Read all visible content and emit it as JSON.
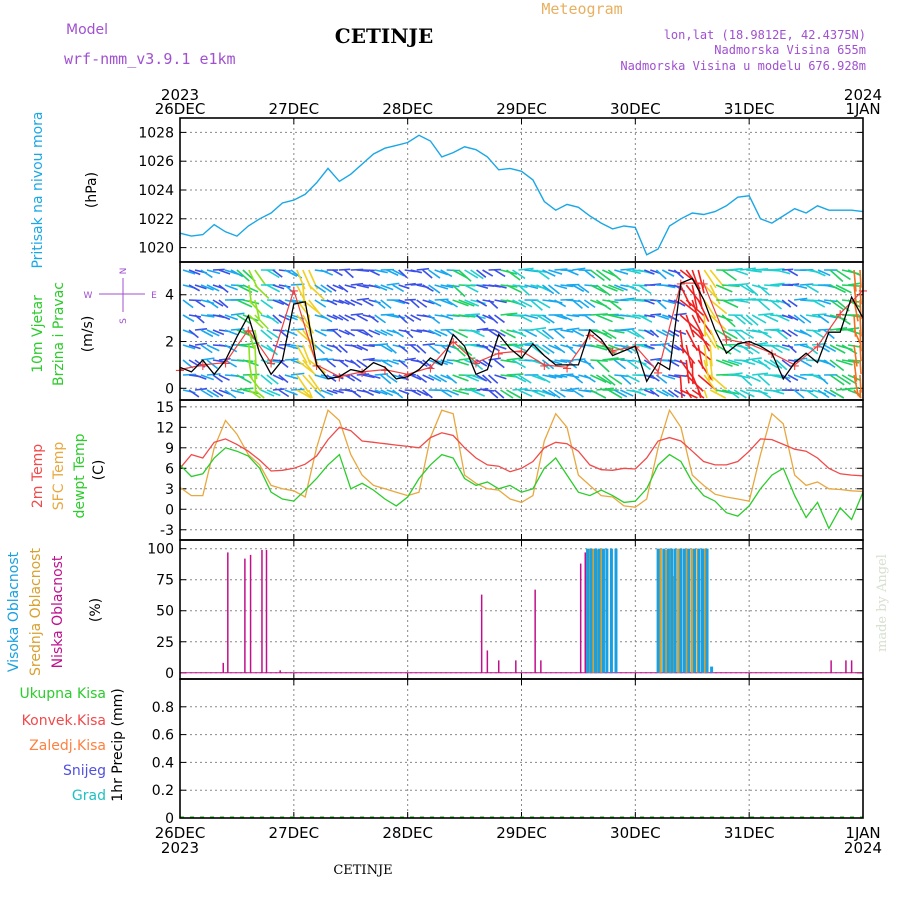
{
  "header": {
    "model_label": "Model",
    "model_name": "wrf-nmm_v3.9.1  e1km",
    "station": "CETINJE",
    "meteogram": "Meteogram",
    "lonlat": "lon,lat (18.9812E, 42.4375N)",
    "alt1": "Nadmorska Visina 655m",
    "alt2": "Nadmorska Visina u modelu 676.928m"
  },
  "footer": {
    "station": "CETINJE"
  },
  "watermark": "made by Angel",
  "time_axis": {
    "start_year": "2023",
    "end_year": "2024",
    "labels": [
      "26DEC",
      "27DEC",
      "28DEC",
      "29DEC",
      "30DEC",
      "31DEC",
      "1JAN"
    ]
  },
  "colors": {
    "pressure": "#1aa7e6",
    "wind_black": "#000000",
    "wind_red": "#f04040",
    "t2m": "#f04a4a",
    "sfc": "#e8a840",
    "dew": "#2ccc2c",
    "low_cloud": "#c0108c",
    "mid_cloud": "#d8a030",
    "high_cloud": "#1aa0e0",
    "precip_total": "#2ccc2c",
    "precip_conv": "#f04a4a",
    "precip_snow_ice": "#ff8040",
    "snow": "#5050e0",
    "grad": "#20c0c0"
  },
  "chart_data": [
    {
      "type": "line",
      "ylabel": "(hPa)",
      "side_label": "Pritisak na nivou mora",
      "yticks": [
        1020,
        1022,
        1024,
        1026,
        1028
      ],
      "ylim": [
        1019,
        1029
      ],
      "series": [
        {
          "x": [
            0,
            0.1,
            0.2,
            0.3,
            0.4,
            0.5,
            0.6,
            0.7,
            0.8,
            0.9,
            1.0,
            1.1,
            1.2,
            1.3,
            1.4,
            1.5,
            1.6,
            1.7,
            1.8,
            1.9,
            2.0,
            2.1,
            2.2,
            2.3,
            2.4,
            2.5,
            2.6,
            2.7,
            2.8,
            2.9,
            3.0,
            3.1,
            3.2,
            3.3,
            3.4,
            3.5,
            3.6,
            3.7,
            3.8,
            3.9,
            4.0,
            4.1,
            4.2,
            4.3,
            4.4,
            4.5,
            4.6,
            4.7,
            4.8,
            4.9,
            5.0,
            5.1,
            5.2,
            5.3,
            5.4,
            5.5,
            5.6,
            5.7,
            5.8,
            5.9,
            6.0
          ],
          "values": [
            1021.0,
            1020.8,
            1020.9,
            1021.6,
            1021.1,
            1020.8,
            1021.5,
            1022.0,
            1022.4,
            1023.1,
            1023.3,
            1023.7,
            1024.5,
            1025.5,
            1024.6,
            1025.1,
            1025.8,
            1026.5,
            1026.9,
            1027.1,
            1027.3,
            1027.8,
            1027.4,
            1026.3,
            1026.6,
            1027.0,
            1026.8,
            1026.3,
            1025.4,
            1025.5,
            1025.3,
            1024.7,
            1023.2,
            1022.6,
            1023.0,
            1022.8,
            1022.2,
            1021.7,
            1021.3,
            1021.5,
            1021.4,
            1019.5,
            1019.9,
            1021.5,
            1022.0,
            1022.4,
            1022.3,
            1022.5,
            1022.9,
            1023.5,
            1023.6,
            1022.0,
            1021.7,
            1022.2,
            1022.7,
            1022.4,
            1022.9,
            1022.6,
            1022.6,
            1022.6,
            1022.5
          ]
        }
      ]
    },
    {
      "type": "line",
      "ylabel": "(m/s)",
      "side_label_1": "10m Vjetar",
      "side_label_2": "Brzina i Pravac",
      "compass": {
        "n": "N",
        "w": "W",
        "e": "E",
        "s": "S"
      },
      "yticks": [
        0,
        2,
        4
      ],
      "ylim": [
        -0.5,
        5.4
      ],
      "series": [
        {
          "x": [
            0,
            0.1,
            0.2,
            0.3,
            0.4,
            0.5,
            0.6,
            0.7,
            0.8,
            0.9,
            1.0,
            1.1,
            1.2,
            1.3,
            1.4,
            1.5,
            1.6,
            1.7,
            1.8,
            1.9,
            2.0,
            2.1,
            2.2,
            2.3,
            2.4,
            2.5,
            2.6,
            2.7,
            2.8,
            2.9,
            3.0,
            3.1,
            3.2,
            3.3,
            3.4,
            3.5,
            3.6,
            3.7,
            3.8,
            3.9,
            4.0,
            4.1,
            4.2,
            4.3,
            4.4,
            4.5,
            4.6,
            4.7,
            4.8,
            4.9,
            5.0,
            5.1,
            5.2,
            5.3,
            5.4,
            5.5,
            5.6,
            5.7,
            5.8,
            5.9,
            6.0
          ],
          "values": [
            0.9,
            0.7,
            1.2,
            0.6,
            1.2,
            2.2,
            3.1,
            1.5,
            0.6,
            1.2,
            3.6,
            3.7,
            1.0,
            0.4,
            0.5,
            0.8,
            0.7,
            1.1,
            0.9,
            0.4,
            0.5,
            0.8,
            1.3,
            1.0,
            2.3,
            1.8,
            0.6,
            0.8,
            2.3,
            1.7,
            1.3,
            1.9,
            1.4,
            1.0,
            1.0,
            1.0,
            2.5,
            2.1,
            1.4,
            1.6,
            1.8,
            0.3,
            1.1,
            0.8,
            4.5,
            4.7,
            3.8,
            2.5,
            1.5,
            1.9,
            2.0,
            1.8,
            1.5,
            0.4,
            1.1,
            1.5,
            1.1,
            2.4,
            2.4,
            3.9,
            3.0
          ]
        },
        {
          "x": [
            0,
            0.2,
            0.4,
            0.6,
            0.8,
            1.0,
            1.2,
            1.4,
            1.6,
            1.8,
            2.0,
            2.2,
            2.4,
            2.6,
            2.8,
            3.0,
            3.2,
            3.4,
            3.6,
            3.8,
            4.0,
            4.2,
            4.4,
            4.6,
            4.8,
            5.0,
            5.2,
            5.4,
            5.6,
            5.8,
            6.0
          ],
          "values": [
            0.8,
            1.0,
            1.1,
            2.5,
            1.1,
            4.2,
            1.0,
            0.5,
            0.7,
            0.8,
            0.6,
            0.9,
            2.0,
            1.1,
            1.5,
            1.6,
            1.0,
            0.9,
            2.3,
            1.6,
            1.8,
            0.7,
            4.5,
            4.5,
            2.1,
            1.9,
            1.5,
            1.0,
            1.8,
            3.2,
            4.2
          ]
        }
      ]
    },
    {
      "type": "line",
      "ylabel": "(C)",
      "side_labels": [
        "2m Temp",
        "SFC Temp",
        "dewpt Temp"
      ],
      "yticks": [
        -3,
        0,
        3,
        6,
        9,
        12,
        15
      ],
      "ylim": [
        -4.5,
        16
      ],
      "series": [
        {
          "x": [
            0,
            0.1,
            0.2,
            0.3,
            0.4,
            0.5,
            0.6,
            0.7,
            0.8,
            0.9,
            1.0,
            1.1,
            1.2,
            1.3,
            1.4,
            1.5,
            1.6,
            1.7,
            1.8,
            1.9,
            2.0,
            2.1,
            2.2,
            2.3,
            2.4,
            2.5,
            2.6,
            2.7,
            2.8,
            2.9,
            3.0,
            3.1,
            3.2,
            3.3,
            3.4,
            3.5,
            3.6,
            3.7,
            3.8,
            3.9,
            4.0,
            4.1,
            4.2,
            4.3,
            4.4,
            4.5,
            4.6,
            4.7,
            4.8,
            4.9,
            5.0,
            5.1,
            5.2,
            5.3,
            5.4,
            5.5,
            5.6,
            5.7,
            5.8,
            5.9,
            6.0
          ],
          "values": [
            6.0,
            8.0,
            7.5,
            9.8,
            10.3,
            9.5,
            8.5,
            7.2,
            5.6,
            5.7,
            6.0,
            6.6,
            7.8,
            10.2,
            12.0,
            11.5,
            10.0,
            9.8,
            9.6,
            9.4,
            9.2,
            9.0,
            10.5,
            11.2,
            10.8,
            9.0,
            7.5,
            6.5,
            6.3,
            5.5,
            6.0,
            7.0,
            9.0,
            9.8,
            9.6,
            8.5,
            6.5,
            5.8,
            5.7,
            6.0,
            5.9,
            7.5,
            10.0,
            10.5,
            10.0,
            8.5,
            7.0,
            6.5,
            6.5,
            7.0,
            8.5,
            10.3,
            10.2,
            9.5,
            8.8,
            8.5,
            7.5,
            6.0,
            5.2,
            5.0,
            4.9
          ]
        },
        {
          "x": [
            0,
            0.1,
            0.2,
            0.3,
            0.4,
            0.5,
            0.6,
            0.7,
            0.8,
            0.9,
            1.0,
            1.1,
            1.2,
            1.3,
            1.4,
            1.5,
            1.6,
            1.7,
            1.8,
            1.9,
            2.0,
            2.1,
            2.2,
            2.3,
            2.4,
            2.5,
            2.6,
            2.7,
            2.8,
            2.9,
            3.0,
            3.1,
            3.2,
            3.3,
            3.4,
            3.5,
            3.6,
            3.7,
            3.8,
            3.9,
            4.0,
            4.1,
            4.2,
            4.3,
            4.4,
            4.5,
            4.6,
            4.7,
            4.8,
            4.9,
            5.0,
            5.1,
            5.2,
            5.3,
            5.4,
            5.5,
            5.6,
            5.7,
            5.8,
            5.9,
            6.0
          ],
          "values": [
            3.2,
            2.0,
            2.0,
            9.0,
            13.0,
            11.0,
            8.0,
            6.5,
            3.5,
            3.0,
            2.7,
            1.8,
            9.0,
            14.5,
            13.0,
            8.0,
            5.0,
            3.5,
            3.0,
            2.5,
            2.0,
            2.5,
            10.5,
            14.5,
            14.0,
            5.0,
            3.8,
            3.0,
            2.8,
            1.5,
            1.0,
            2.0,
            10.0,
            14.0,
            12.0,
            5.0,
            3.5,
            2.0,
            1.8,
            0.5,
            0.3,
            1.5,
            9.0,
            14.5,
            12.0,
            5.0,
            3.5,
            2.2,
            1.8,
            1.5,
            1.2,
            8.0,
            14.0,
            12.5,
            5.0,
            3.5,
            4.0,
            3.0,
            2.9,
            2.7,
            2.6
          ]
        },
        {
          "x": [
            0,
            0.1,
            0.2,
            0.3,
            0.4,
            0.5,
            0.6,
            0.7,
            0.8,
            0.9,
            1.0,
            1.1,
            1.2,
            1.3,
            1.4,
            1.5,
            1.6,
            1.7,
            1.8,
            1.9,
            2.0,
            2.1,
            2.2,
            2.3,
            2.4,
            2.5,
            2.6,
            2.7,
            2.8,
            2.9,
            3.0,
            3.1,
            3.2,
            3.3,
            3.4,
            3.5,
            3.6,
            3.7,
            3.8,
            3.9,
            4.0,
            4.1,
            4.2,
            4.3,
            4.4,
            4.5,
            4.6,
            4.7,
            4.8,
            4.9,
            5.0,
            5.1,
            5.2,
            5.3,
            5.4,
            5.5,
            5.6,
            5.7,
            5.8,
            5.9,
            6.0
          ],
          "values": [
            6.5,
            4.8,
            5.2,
            7.5,
            9.0,
            8.5,
            7.8,
            6.0,
            2.5,
            1.5,
            1.2,
            2.8,
            4.5,
            6.5,
            8.0,
            3.0,
            3.8,
            2.8,
            1.5,
            0.5,
            1.8,
            4.5,
            6.5,
            8.0,
            7.5,
            4.5,
            3.5,
            4.0,
            3.0,
            3.5,
            2.5,
            3.0,
            6.0,
            7.5,
            5.0,
            2.5,
            2.0,
            2.8,
            2.0,
            1.0,
            1.2,
            3.0,
            6.5,
            8.0,
            7.0,
            4.0,
            2.0,
            1.2,
            -0.5,
            -1.0,
            0.5,
            3.0,
            5.0,
            6.0,
            2.0,
            -1.2,
            1.0,
            -2.8,
            0.2,
            -1.5,
            2.5
          ]
        }
      ]
    },
    {
      "type": "bar",
      "ylabel": "(%)",
      "side_labels": [
        "Visoka Oblacnost",
        "Srednja Oblacnost",
        "Niska Oblacnost"
      ],
      "yticks": [
        0,
        25,
        50,
        75,
        100
      ],
      "ylim": [
        -5,
        107
      ],
      "low_cloud": {
        "x": [
          0.38,
          0.42,
          0.57,
          0.62,
          0.72,
          0.76,
          0.88,
          2.65,
          2.7,
          2.8,
          2.95,
          3.12,
          3.17,
          3.52,
          3.56,
          5.72,
          5.85,
          5.9
        ],
        "values": [
          8,
          97,
          92,
          95,
          99,
          99,
          2,
          63,
          18,
          10,
          10,
          67,
          10,
          88,
          97,
          10,
          10,
          10
        ]
      },
      "mid_cloud": {
        "x": [
          3.6,
          3.63,
          3.66,
          3.7,
          4.22,
          4.27,
          4.3,
          4.33,
          4.38,
          4.45,
          4.5,
          4.55,
          4.6,
          4.62
        ],
        "values": [
          100,
          100,
          99,
          100,
          100,
          99,
          100,
          78,
          100,
          100,
          100,
          100,
          100,
          100
        ]
      },
      "high_cloud": {
        "x": [
          3.58,
          3.61,
          3.65,
          3.68,
          3.72,
          3.75,
          3.79,
          3.83,
          4.2,
          4.25,
          4.29,
          4.32,
          4.35,
          4.4,
          4.43,
          4.47,
          4.52,
          4.56,
          4.59,
          4.63,
          4.67
        ],
        "values": [
          100,
          100,
          100,
          100,
          100,
          100,
          100,
          100,
          100,
          100,
          100,
          100,
          100,
          100,
          100,
          100,
          100,
          100,
          100,
          100,
          5
        ]
      }
    },
    {
      "type": "bar",
      "ylabel": "1hr Precip (mm)",
      "side_labels": [
        "Ukupna Kisa",
        "Konvek.Kisa",
        "Zaledj.Kisa",
        "Snijeg",
        "Grad"
      ],
      "yticks": [
        0,
        0.2,
        0.4,
        0.6,
        0.8
      ],
      "ylim": [
        0,
        1
      ],
      "values": []
    }
  ]
}
